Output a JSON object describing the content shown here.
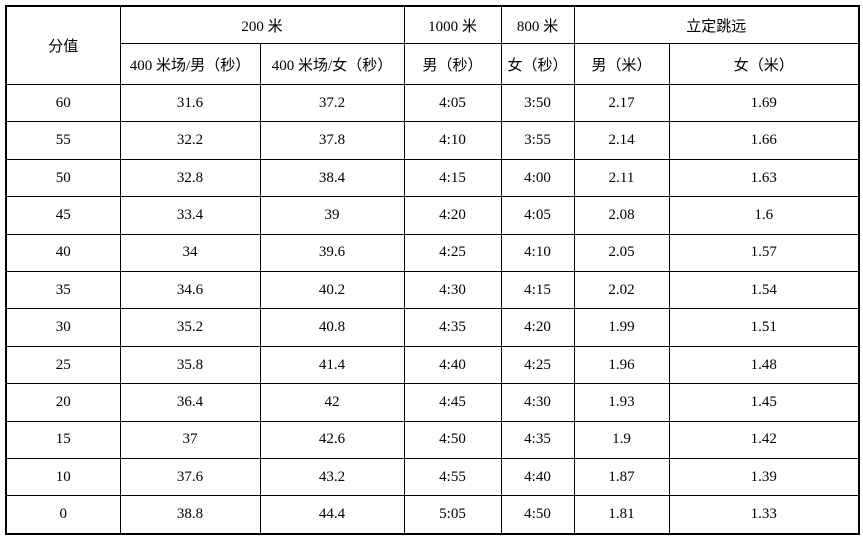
{
  "table": {
    "header": {
      "score_label": "分值",
      "group_200m": "200 米",
      "group_1000m": "1000 米",
      "group_800m": "800 米",
      "group_long_jump": "立定跳远",
      "sub_400m_track_male": "400 米场/男（秒）",
      "sub_400m_track_female": "400 米场/女（秒）",
      "sub_1000m_male": "男（秒）",
      "sub_800m_female": "女（秒）",
      "sub_jump_male": "男（米）",
      "sub_jump_female": "女（米）"
    },
    "rows": [
      [
        "60",
        "31.6",
        "37.2",
        "4:05",
        "3:50",
        "2.17",
        "1.69"
      ],
      [
        "55",
        "32.2",
        "37.8",
        "4:10",
        "3:55",
        "2.14",
        "1.66"
      ],
      [
        "50",
        "32.8",
        "38.4",
        "4:15",
        "4:00",
        "2.11",
        "1.63"
      ],
      [
        "45",
        "33.4",
        "39",
        "4:20",
        "4:05",
        "2.08",
        "1.6"
      ],
      [
        "40",
        "34",
        "39.6",
        "4:25",
        "4:10",
        "2.05",
        "1.57"
      ],
      [
        "35",
        "34.6",
        "40.2",
        "4:30",
        "4:15",
        "2.02",
        "1.54"
      ],
      [
        "30",
        "35.2",
        "40.8",
        "4:35",
        "4:20",
        "1.99",
        "1.51"
      ],
      [
        "25",
        "35.8",
        "41.4",
        "4:40",
        "4:25",
        "1.96",
        "1.48"
      ],
      [
        "20",
        "36.4",
        "42",
        "4:45",
        "4:30",
        "1.93",
        "1.45"
      ],
      [
        "15",
        "37",
        "42.6",
        "4:50",
        "4:35",
        "1.9",
        "1.42"
      ],
      [
        "10",
        "37.6",
        "43.2",
        "4:55",
        "4:40",
        "1.87",
        "1.39"
      ],
      [
        "0",
        "38.8",
        "44.4",
        "5:05",
        "4:50",
        "1.81",
        "1.33"
      ]
    ],
    "border_color": "#000000",
    "background_color": "#ffffff",
    "text_color": "#000000"
  }
}
